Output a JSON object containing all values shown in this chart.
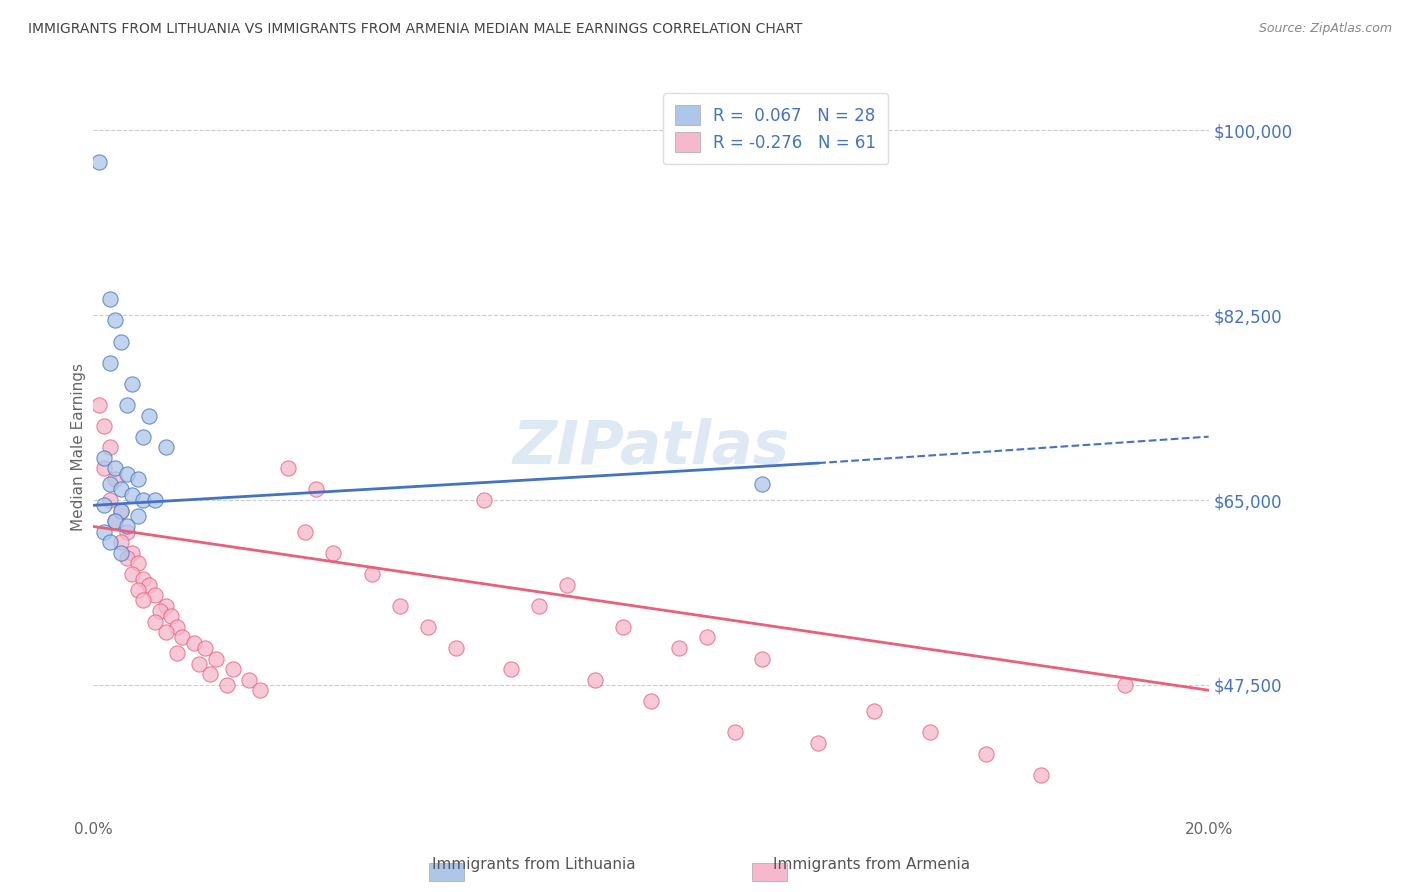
{
  "title": "IMMIGRANTS FROM LITHUANIA VS IMMIGRANTS FROM ARMENIA MEDIAN MALE EARNINGS CORRELATION CHART",
  "source": "Source: ZipAtlas.com",
  "ylabel": "Median Male Earnings",
  "x_min": 0.0,
  "x_max": 0.2,
  "y_min": 35000,
  "y_max": 105000,
  "y_ticks": [
    47500,
    65000,
    82500,
    100000
  ],
  "y_tick_labels": [
    "$47,500",
    "$65,000",
    "$82,500",
    "$100,000"
  ],
  "x_ticks": [
    0.0,
    0.2
  ],
  "x_tick_labels": [
    "0.0%",
    "20.0%"
  ],
  "lithuania_color": "#aec6e8",
  "armenia_color": "#f5b8cc",
  "lithuania_line_color": "#4472c4",
  "armenia_line_color": "#e8607a",
  "r_lithuania": 0.067,
  "n_lithuania": 28,
  "r_armenia": -0.276,
  "n_armenia": 61,
  "watermark": "ZIPatlas",
  "lithuania_points": [
    [
      0.001,
      97000
    ],
    [
      0.003,
      84000
    ],
    [
      0.004,
      82000
    ],
    [
      0.005,
      80000
    ],
    [
      0.003,
      78000
    ],
    [
      0.007,
      76000
    ],
    [
      0.006,
      74000
    ],
    [
      0.01,
      73000
    ],
    [
      0.009,
      71000
    ],
    [
      0.013,
      70000
    ],
    [
      0.002,
      69000
    ],
    [
      0.004,
      68000
    ],
    [
      0.006,
      67500
    ],
    [
      0.008,
      67000
    ],
    [
      0.003,
      66500
    ],
    [
      0.005,
      66000
    ],
    [
      0.007,
      65500
    ],
    [
      0.009,
      65000
    ],
    [
      0.011,
      65000
    ],
    [
      0.002,
      64500
    ],
    [
      0.005,
      64000
    ],
    [
      0.008,
      63500
    ],
    [
      0.004,
      63000
    ],
    [
      0.006,
      62500
    ],
    [
      0.002,
      62000
    ],
    [
      0.003,
      61000
    ],
    [
      0.12,
      66500
    ],
    [
      0.005,
      60000
    ]
  ],
  "armenia_points": [
    [
      0.001,
      74000
    ],
    [
      0.002,
      72000
    ],
    [
      0.003,
      70000
    ],
    [
      0.002,
      68000
    ],
    [
      0.004,
      67000
    ],
    [
      0.003,
      65000
    ],
    [
      0.005,
      64000
    ],
    [
      0.004,
      63000
    ],
    [
      0.006,
      62000
    ],
    [
      0.005,
      61000
    ],
    [
      0.007,
      60000
    ],
    [
      0.006,
      59500
    ],
    [
      0.008,
      59000
    ],
    [
      0.007,
      58000
    ],
    [
      0.009,
      57500
    ],
    [
      0.01,
      57000
    ],
    [
      0.008,
      56500
    ],
    [
      0.011,
      56000
    ],
    [
      0.009,
      55500
    ],
    [
      0.013,
      55000
    ],
    [
      0.012,
      54500
    ],
    [
      0.014,
      54000
    ],
    [
      0.011,
      53500
    ],
    [
      0.015,
      53000
    ],
    [
      0.013,
      52500
    ],
    [
      0.016,
      52000
    ],
    [
      0.018,
      51500
    ],
    [
      0.02,
      51000
    ],
    [
      0.015,
      50500
    ],
    [
      0.022,
      50000
    ],
    [
      0.019,
      49500
    ],
    [
      0.025,
      49000
    ],
    [
      0.021,
      48500
    ],
    [
      0.028,
      48000
    ],
    [
      0.024,
      47500
    ],
    [
      0.03,
      47000
    ],
    [
      0.035,
      68000
    ],
    [
      0.04,
      66000
    ],
    [
      0.038,
      62000
    ],
    [
      0.043,
      60000
    ],
    [
      0.05,
      58000
    ],
    [
      0.055,
      55000
    ],
    [
      0.06,
      53000
    ],
    [
      0.065,
      51000
    ],
    [
      0.07,
      65000
    ],
    [
      0.075,
      49000
    ],
    [
      0.08,
      55000
    ],
    [
      0.085,
      57000
    ],
    [
      0.09,
      48000
    ],
    [
      0.095,
      53000
    ],
    [
      0.1,
      46000
    ],
    [
      0.105,
      51000
    ],
    [
      0.11,
      52000
    ],
    [
      0.115,
      43000
    ],
    [
      0.12,
      50000
    ],
    [
      0.13,
      42000
    ],
    [
      0.14,
      45000
    ],
    [
      0.15,
      43000
    ],
    [
      0.16,
      41000
    ],
    [
      0.17,
      39000
    ],
    [
      0.185,
      47500
    ]
  ]
}
